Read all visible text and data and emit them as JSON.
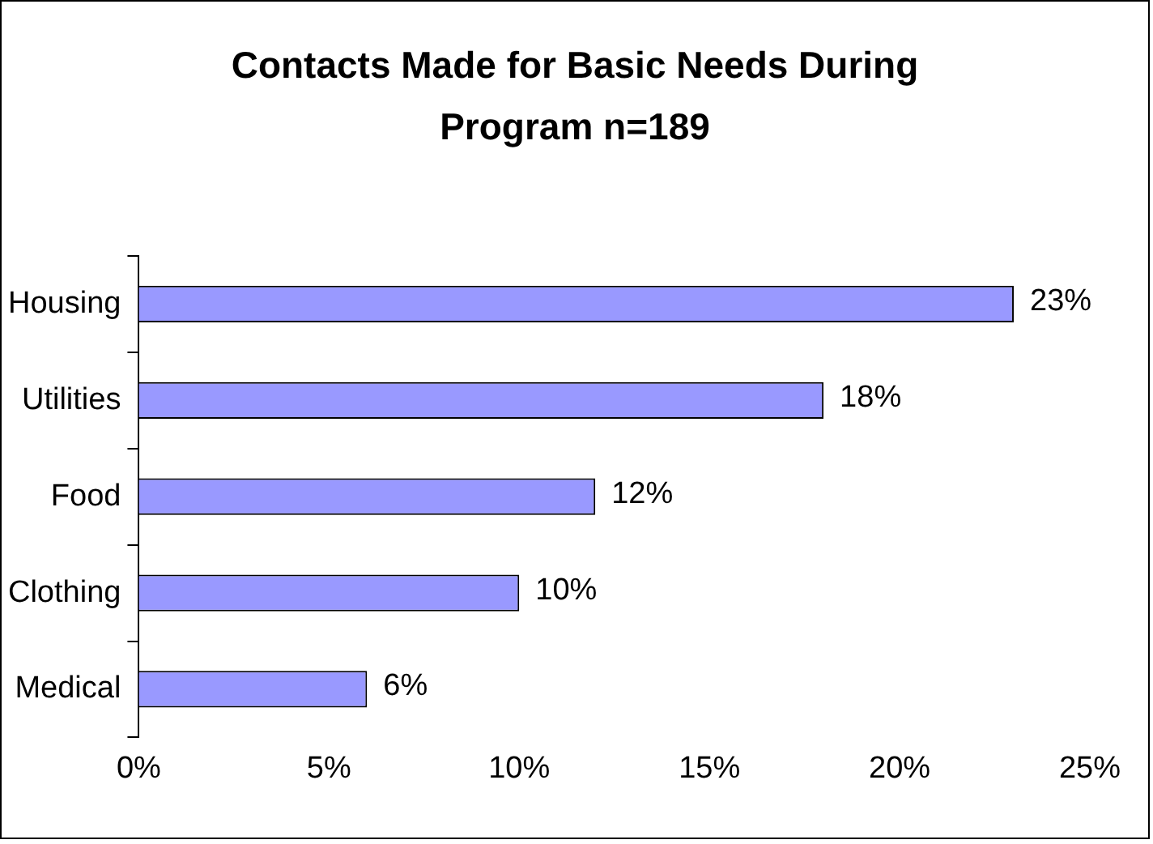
{
  "chart_data": {
    "type": "bar",
    "orientation": "horizontal",
    "title": "Contacts Made for Basic Needs During Program n=189",
    "categories": [
      "Housing",
      "Utilities",
      "Food",
      "Clothing",
      "Medical"
    ],
    "values": [
      23,
      18,
      12,
      10,
      6
    ],
    "color": "#9999ff",
    "value_labels": [
      "23%",
      "18%",
      "12%",
      "10%",
      "6%"
    ],
    "xlim": [
      0,
      25
    ],
    "xticks": [
      {
        "value": 0,
        "label": "0%"
      },
      {
        "value": 5,
        "label": "5%"
      },
      {
        "value": 10,
        "label": "10%"
      },
      {
        "value": 15,
        "label": "15%"
      },
      {
        "value": 20,
        "label": "20%"
      },
      {
        "value": 25,
        "label": "25%"
      }
    ]
  }
}
